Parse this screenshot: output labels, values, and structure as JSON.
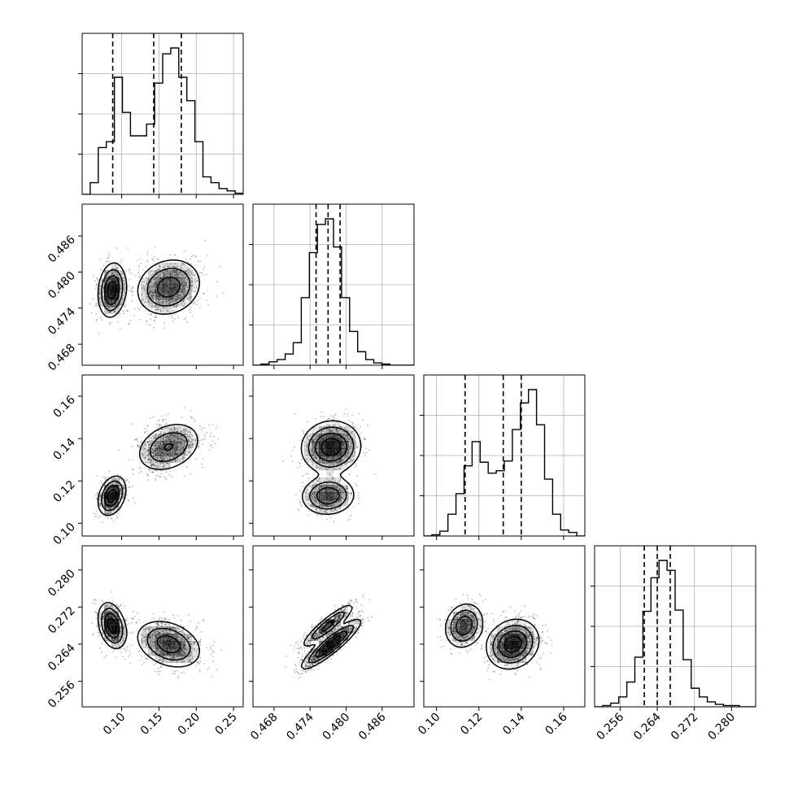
{
  "chart_data": {
    "type": "corner",
    "title": "",
    "params": [
      "",
      "",
      "",
      ""
    ],
    "ranges": [
      [
        0.047,
        0.263
      ],
      [
        0.4645,
        0.4913
      ],
      [
        0.094,
        0.17
      ],
      [
        0.2505,
        0.2852
      ]
    ],
    "ticks": [
      {
        "values": [
          0.1,
          0.15,
          0.2,
          0.25
        ],
        "labels": [
          "0.10",
          "0.15",
          "0.20",
          "0.25"
        ]
      },
      {
        "values": [
          0.468,
          0.474,
          0.48,
          0.486
        ],
        "labels": [
          "0.468",
          "0.474",
          "0.480",
          "0.486"
        ]
      },
      {
        "values": [
          0.1,
          0.12,
          0.14,
          0.16
        ],
        "labels": [
          "0.10",
          "0.12",
          "0.14",
          "0.16"
        ]
      },
      {
        "values": [
          0.256,
          0.264,
          0.272,
          0.28
        ],
        "labels": [
          "0.256",
          "0.264",
          "0.272",
          "0.280"
        ]
      }
    ],
    "quantiles": [
      [
        0.088,
        0.143,
        0.18
      ],
      [
        0.475,
        0.477,
        0.479
      ],
      [
        0.1135,
        0.1315,
        0.14
      ],
      [
        0.2612,
        0.264,
        0.2668
      ]
    ],
    "histograms": [
      {
        "edges_range": [
          0.047,
          0.263
        ],
        "counts": [
          0,
          10,
          40,
          45,
          100,
          70,
          50,
          50,
          60,
          95,
          120,
          125,
          100,
          80,
          45,
          15,
          10,
          5,
          3,
          1
        ]
      },
      {
        "edges_range": [
          0.4645,
          0.4913
        ],
        "counts": [
          0,
          1,
          3,
          5,
          10,
          20,
          60,
          100,
          125,
          130,
          105,
          60,
          30,
          12,
          5,
          2,
          1,
          0,
          0,
          0
        ]
      },
      {
        "edges_range": [
          0.094,
          0.17
        ],
        "counts": [
          0,
          1,
          4,
          18,
          35,
          58,
          78,
          61,
          52,
          54,
          62,
          88,
          110,
          121,
          92,
          47,
          18,
          5,
          3,
          0
        ]
      },
      {
        "edges_range": [
          0.2505,
          0.2852
        ],
        "counts": [
          0,
          1,
          3,
          8,
          20,
          40,
          77,
          104,
          118,
          110,
          78,
          38,
          15,
          8,
          4,
          2,
          1,
          1,
          0,
          0
        ]
      }
    ],
    "modes": [
      {
        "weight": 0.35,
        "mean": [
          0.087,
          0.477,
          0.113,
          0.268
        ],
        "sd": [
          0.009,
          0.0022,
          0.0045,
          0.0024
        ]
      },
      {
        "weight": 0.65,
        "mean": [
          0.163,
          0.4775,
          0.136,
          0.264
        ],
        "sd": [
          0.022,
          0.0024,
          0.006,
          0.0026
        ]
      }
    ],
    "correlations": {
      "0-1": 0.15,
      "0-2": 0.3,
      "0-3": -0.3,
      "1-2": 0.05,
      "1-3": 0.9,
      "2-3": 0.15
    },
    "grid": true,
    "histogram_style": "step",
    "quantile_style": "dashed",
    "colors": {
      "line": "#000000",
      "grid": "#b0b0b0",
      "density": "#000000"
    }
  }
}
